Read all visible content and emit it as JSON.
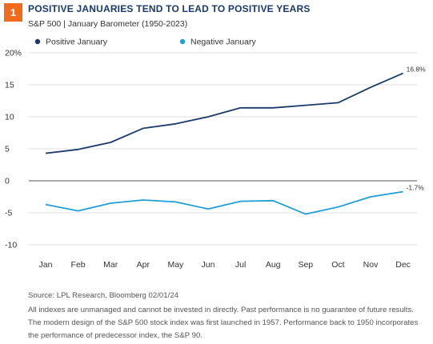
{
  "header": {
    "badge": "1",
    "title": "POSITIVE JANUARIES TEND TO LEAD TO POSITIVE YEARS",
    "subtitle": "S&P 500 | January Barometer (1950-2023)"
  },
  "colors": {
    "badge": "#f26b1d",
    "positive": "#1a3a6b",
    "negative": "#1e9fd8",
    "grid": "#d9d9d9",
    "zero_line": "#555555"
  },
  "chart_data": {
    "type": "line",
    "categories": [
      "Jan",
      "Feb",
      "Mar",
      "Apr",
      "May",
      "Jun",
      "Jul",
      "Aug",
      "Sep",
      "Oct",
      "Nov",
      "Dec"
    ],
    "series": [
      {
        "name": "Positive January",
        "values": [
          4.3,
          4.9,
          6.0,
          8.2,
          8.9,
          10.0,
          11.4,
          11.4,
          11.8,
          12.2,
          14.6,
          16.8
        ],
        "end_label": "16.8%"
      },
      {
        "name": "Negative January",
        "values": [
          -3.7,
          -4.7,
          -3.5,
          -3.0,
          -3.3,
          -4.4,
          -3.2,
          -3.1,
          -5.2,
          -4.1,
          -2.5,
          -1.7
        ],
        "end_label": "-1.7%"
      }
    ],
    "y_ticks": [
      "20%",
      "15",
      "10",
      "5",
      "0",
      "-5",
      "-10"
    ],
    "ylim": [
      -10,
      20
    ],
    "grid": true,
    "legend_position": "top-left"
  },
  "footer": {
    "source": "Source: LPL Research, Bloomberg  02/01/24",
    "notes": [
      "All indexes are unmanaged and cannot be invested in directly. Past performance is no guarantee of future results.",
      "The modern design of the S&P 500 stock index was first launched in 1957. Performance back to 1950 incorporates",
      "the performance of predecessor index, the S&P 90."
    ]
  }
}
